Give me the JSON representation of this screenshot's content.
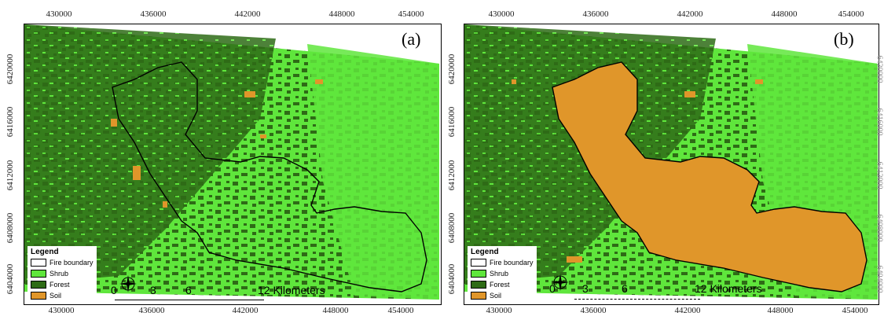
{
  "panels": [
    {
      "label": "(a)",
      "x_ticks": [
        "430000",
        "436000",
        "442000",
        "448000",
        "454000"
      ],
      "y_ticks": [
        "6420000",
        "6416000",
        "6412000",
        "6408000",
        "6404000"
      ],
      "legend": {
        "title": "Legend",
        "items": [
          {
            "label": "Fire boundary",
            "color": "#ffffff"
          },
          {
            "label": "Shrub",
            "color": "#5fe63c"
          },
          {
            "label": "Forest",
            "color": "#2e6b16"
          },
          {
            "label": "Soil",
            "color": "#e0962a"
          }
        ]
      },
      "scale_labels": [
        "0",
        "3",
        "6",
        "12 Kilometers"
      ]
    },
    {
      "label": "(b)",
      "x_ticks": [
        "430000",
        "436000",
        "442000",
        "448000",
        "454000"
      ],
      "y_ticks": [
        "6420000",
        "6416000",
        "6412000",
        "6408000",
        "6404000"
      ],
      "legend": {
        "title": "Legend",
        "items": [
          {
            "label": "Fire boundary",
            "color": "#ffffff"
          },
          {
            "label": "Shrub",
            "color": "#5fe63c"
          },
          {
            "label": "Forest",
            "color": "#2e6b16"
          },
          {
            "label": "Soil",
            "color": "#e0962a"
          }
        ]
      },
      "scale_labels": [
        "0",
        "3",
        "6",
        "12 Kilometers"
      ]
    }
  ],
  "colors": {
    "shrub": "#5fe63c",
    "forest": "#2e6b16",
    "soil": "#e0962a",
    "fire_boundary": "#000000"
  }
}
